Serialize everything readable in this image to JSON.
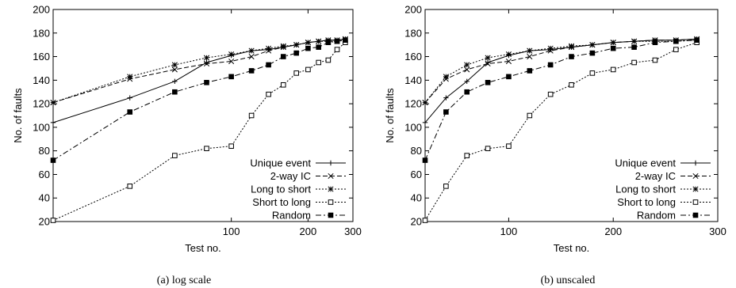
{
  "chart_data": [
    {
      "type": "line",
      "caption": "(a) log scale",
      "xscale": "log",
      "xlim": [
        20,
        300
      ],
      "ylim": [
        20,
        200
      ],
      "xticks": [
        100,
        200,
        300
      ],
      "yticks": [
        20,
        40,
        60,
        80,
        100,
        120,
        140,
        160,
        180,
        200
      ],
      "xlabel": "Test no.",
      "ylabel": "No. of faults",
      "grid": false,
      "legend_position": "bottom-right",
      "series": [
        {
          "name": "Unique event",
          "line": "solid",
          "marker": "plus",
          "x": [
            20,
            40,
            60,
            80,
            100,
            120,
            140,
            160,
            180,
            200,
            220,
            240,
            260,
            280
          ],
          "y": [
            104,
            125,
            139,
            155,
            161,
            165,
            166,
            168,
            170,
            172,
            173,
            174,
            174,
            175
          ]
        },
        {
          "name": "2-way IC",
          "line": "dashed",
          "marker": "cross",
          "x": [
            20,
            40,
            60,
            80,
            100,
            120,
            140,
            160,
            180,
            200,
            220,
            240,
            260,
            280
          ],
          "y": [
            121,
            141,
            149,
            154,
            156,
            160,
            165,
            168,
            170,
            172,
            173,
            174,
            174,
            175
          ]
        },
        {
          "name": "Long to short",
          "line": "dotted",
          "marker": "asterisk",
          "x": [
            20,
            40,
            60,
            80,
            100,
            120,
            140,
            160,
            180,
            200,
            220,
            240,
            260,
            280
          ],
          "y": [
            121,
            143,
            153,
            159,
            162,
            165,
            167,
            169,
            170,
            172,
            173,
            173,
            173,
            174
          ]
        },
        {
          "name": "Short to long",
          "line": "dotted",
          "marker": "open-square",
          "x": [
            20,
            40,
            60,
            80,
            100,
            120,
            140,
            160,
            180,
            200,
            220,
            240,
            260,
            280
          ],
          "y": [
            21,
            50,
            76,
            82,
            84,
            110,
            128,
            136,
            146,
            149,
            155,
            157,
            166,
            172
          ]
        },
        {
          "name": "Random",
          "line": "dash-dot",
          "marker": "filled-square",
          "x": [
            20,
            40,
            60,
            80,
            100,
            120,
            140,
            160,
            180,
            200,
            220,
            240,
            260,
            280
          ],
          "y": [
            72,
            113,
            130,
            138,
            143,
            148,
            153,
            160,
            163,
            167,
            168,
            172,
            173,
            174
          ]
        }
      ]
    },
    {
      "type": "line",
      "caption": "(b) unscaled",
      "xscale": "linear",
      "xlim": [
        20,
        300
      ],
      "ylim": [
        20,
        200
      ],
      "xticks": [
        100,
        200,
        300
      ],
      "yticks": [
        20,
        40,
        60,
        80,
        100,
        120,
        140,
        160,
        180,
        200
      ],
      "xlabel": "Test no.",
      "ylabel": "No. of faults",
      "grid": false,
      "legend_position": "bottom-right",
      "series": [
        {
          "name": "Unique event",
          "line": "solid",
          "marker": "plus",
          "x": [
            20,
            40,
            60,
            80,
            100,
            120,
            140,
            160,
            180,
            200,
            220,
            240,
            260,
            280
          ],
          "y": [
            104,
            125,
            139,
            155,
            161,
            165,
            166,
            168,
            170,
            172,
            173,
            174,
            174,
            175
          ]
        },
        {
          "name": "2-way IC",
          "line": "dashed",
          "marker": "cross",
          "x": [
            20,
            40,
            60,
            80,
            100,
            120,
            140,
            160,
            180,
            200,
            220,
            240,
            260,
            280
          ],
          "y": [
            121,
            141,
            149,
            154,
            156,
            160,
            165,
            168,
            170,
            172,
            173,
            174,
            174,
            175
          ]
        },
        {
          "name": "Long to short",
          "line": "dotted",
          "marker": "asterisk",
          "x": [
            20,
            40,
            60,
            80,
            100,
            120,
            140,
            160,
            180,
            200,
            220,
            240,
            260,
            280
          ],
          "y": [
            121,
            143,
            153,
            159,
            162,
            165,
            167,
            169,
            170,
            172,
            173,
            173,
            173,
            174
          ]
        },
        {
          "name": "Short to long",
          "line": "dotted",
          "marker": "open-square",
          "x": [
            20,
            40,
            60,
            80,
            100,
            120,
            140,
            160,
            180,
            200,
            220,
            240,
            260,
            280
          ],
          "y": [
            21,
            50,
            76,
            82,
            84,
            110,
            128,
            136,
            146,
            149,
            155,
            157,
            166,
            172
          ]
        },
        {
          "name": "Random",
          "line": "dash-dot",
          "marker": "filled-square",
          "x": [
            20,
            40,
            60,
            80,
            100,
            120,
            140,
            160,
            180,
            200,
            220,
            240,
            260,
            280
          ],
          "y": [
            72,
            113,
            130,
            138,
            143,
            148,
            153,
            160,
            163,
            167,
            168,
            172,
            173,
            174
          ]
        }
      ]
    }
  ]
}
